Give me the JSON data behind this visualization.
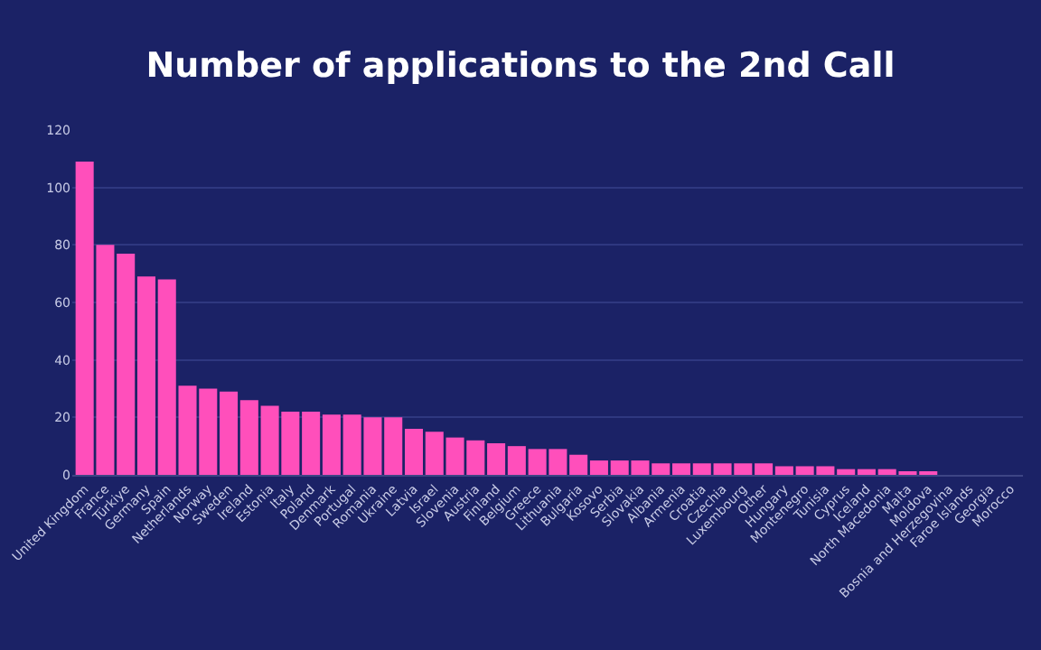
{
  "chart_data": {
    "type": "bar",
    "title": "Number of applications to the 2nd Call",
    "categories": [
      "United Kingdom",
      "France",
      "Türkiye",
      "Germany",
      "Spain",
      "Netherlands",
      "Norway",
      "Sweden",
      "Ireland",
      "Estonia",
      "Italy",
      "Poland",
      "Denmark",
      "Portugal",
      "Romania",
      "Ukraine",
      "Latvia",
      "Israel",
      "Slovenia",
      "Austria",
      "Finland",
      "Belgium",
      "Greece",
      "Lithuania",
      "Bulgaria",
      "Kosovo",
      "Serbia",
      "Slovakia",
      "Albania",
      "Armenia",
      "Croatia",
      "Czechia",
      "Luxembourg",
      "Other",
      "Hungary",
      "Montenegro",
      "Tunisia",
      "Cyprus",
      "Iceland",
      "North Macedonia",
      "Malta",
      "Moldova",
      "Bosnia and Herzegovina",
      "Faroe Islands",
      "Georgia",
      "Morocco"
    ],
    "values": [
      109,
      80,
      77,
      69,
      68,
      31,
      30,
      29,
      26,
      24,
      22,
      22,
      21,
      21,
      20,
      20,
      16,
      15,
      13,
      12,
      11,
      10,
      9,
      9,
      7,
      5,
      5,
      5,
      4,
      4,
      4,
      4,
      4,
      4,
      3,
      3,
      3,
      2,
      2,
      2,
      1,
      1,
      0,
      0,
      0,
      0
    ],
    "color": "#ff4fbb",
    "ylim": [
      0,
      120
    ],
    "yticks": [
      0,
      20,
      40,
      60,
      80,
      100,
      120
    ],
    "grid": "y"
  }
}
